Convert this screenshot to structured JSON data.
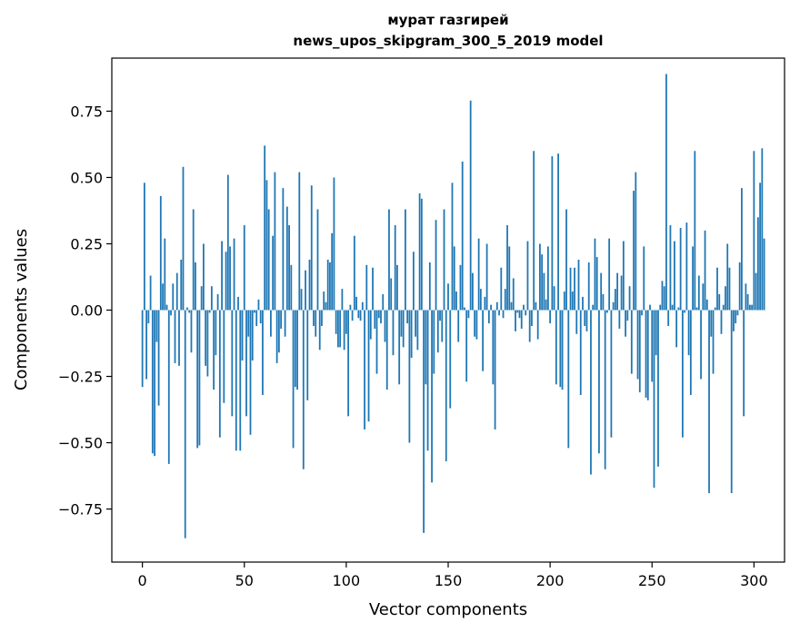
{
  "chart_data": {
    "type": "bar",
    "title": "мурат газгирей",
    "subtitle": "news_upos_skipgram_300_5_2019 model",
    "xlabel": "Vector components",
    "ylabel": "Components values",
    "xlim": [
      -15,
      315
    ],
    "ylim": [
      -0.95,
      0.95
    ],
    "x_ticks": [
      0,
      50,
      100,
      150,
      200,
      250,
      300
    ],
    "x_tick_labels": [
      "0",
      "50",
      "100",
      "150",
      "200",
      "250",
      "300"
    ],
    "y_ticks": [
      -0.75,
      -0.5,
      -0.25,
      0.0,
      0.25,
      0.5,
      0.75
    ],
    "y_tick_labels": [
      "−0.75",
      "−0.50",
      "−0.25",
      "0.00",
      "0.25",
      "0.50",
      "0.75"
    ],
    "grid": false,
    "bar_color": "#1f77b4",
    "values": [
      -0.29,
      0.48,
      -0.26,
      -0.05,
      0.13,
      -0.54,
      -0.55,
      -0.12,
      -0.36,
      0.43,
      0.1,
      0.27,
      0.02,
      -0.58,
      -0.02,
      0.1,
      -0.2,
      0.14,
      -0.21,
      0.19,
      0.54,
      -0.86,
      0.01,
      -0.01,
      -0.16,
      0.38,
      0.18,
      -0.52,
      -0.51,
      0.09,
      0.25,
      -0.21,
      -0.25,
      -0.01,
      0.09,
      -0.3,
      -0.17,
      0.06,
      -0.48,
      0.26,
      -0.35,
      0.22,
      0.51,
      0.24,
      -0.4,
      0.27,
      -0.53,
      0.05,
      -0.53,
      -0.19,
      0.32,
      -0.4,
      -0.1,
      -0.47,
      -0.19,
      -0.01,
      -0.06,
      0.04,
      -0.05,
      -0.32,
      0.62,
      0.49,
      0.38,
      -0.1,
      0.28,
      0.52,
      -0.2,
      -0.16,
      -0.07,
      0.46,
      -0.1,
      0.39,
      0.32,
      0.17,
      -0.52,
      -0.29,
      -0.3,
      0.52,
      0.08,
      -0.6,
      0.15,
      -0.34,
      0.19,
      0.47,
      -0.06,
      -0.1,
      0.38,
      -0.15,
      -0.06,
      0.07,
      0.03,
      0.19,
      0.18,
      0.29,
      0.5,
      -0.09,
      -0.14,
      -0.14,
      0.08,
      -0.15,
      -0.09,
      -0.4,
      0.02,
      -0.04,
      0.28,
      0.05,
      -0.03,
      -0.04,
      0.03,
      -0.45,
      0.17,
      -0.42,
      -0.11,
      0.16,
      -0.07,
      -0.24,
      -0.03,
      -0.05,
      0.06,
      -0.12,
      -0.3,
      0.38,
      0.12,
      -0.17,
      0.32,
      0.17,
      -0.28,
      -0.1,
      -0.14,
      0.38,
      -0.05,
      -0.5,
      -0.18,
      0.22,
      -0.1,
      -0.15,
      0.44,
      0.42,
      -0.84,
      -0.28,
      -0.53,
      0.18,
      -0.65,
      -0.24,
      0.34,
      -0.16,
      -0.04,
      -0.12,
      0.38,
      -0.57,
      0.1,
      -0.37,
      0.48,
      0.24,
      0.07,
      -0.12,
      0.17,
      0.56,
      0.01,
      -0.27,
      -0.03,
      0.79,
      0.14,
      -0.1,
      -0.11,
      0.27,
      0.08,
      -0.23,
      0.05,
      0.25,
      -0.05,
      0.02,
      -0.28,
      -0.45,
      0.03,
      -0.02,
      0.16,
      -0.03,
      0.08,
      0.32,
      0.24,
      0.03,
      0.12,
      -0.08,
      -0.01,
      -0.03,
      -0.07,
      0.02,
      -0.02,
      0.26,
      -0.12,
      -0.06,
      0.6,
      0.03,
      -0.11,
      0.25,
      0.21,
      0.14,
      0.04,
      0.24,
      -0.05,
      0.58,
      0.09,
      -0.28,
      0.59,
      -0.29,
      -0.3,
      0.07,
      0.38,
      -0.52,
      0.16,
      0.07,
      0.16,
      -0.09,
      0.19,
      -0.32,
      0.05,
      -0.06,
      -0.08,
      0.18,
      -0.62,
      0.02,
      0.27,
      0.2,
      -0.54,
      0.14,
      0.06,
      -0.6,
      -0.01,
      0.27,
      -0.48,
      0.03,
      0.08,
      0.14,
      -0.07,
      0.13,
      0.26,
      -0.1,
      -0.04,
      0.09,
      -0.24,
      0.45,
      0.52,
      -0.26,
      -0.31,
      -0.02,
      0.24,
      -0.33,
      -0.34,
      0.02,
      -0.27,
      -0.67,
      -0.17,
      -0.59,
      0.02,
      0.11,
      0.09,
      0.89,
      -0.06,
      0.32,
      0.02,
      0.26,
      -0.14,
      0.01,
      0.31,
      -0.48,
      -0.01,
      0.33,
      -0.17,
      -0.32,
      0.24,
      0.6,
      0.01,
      0.13,
      -0.26,
      0.1,
      0.3,
      0.04,
      -0.69,
      -0.1,
      -0.24,
      0.01,
      0.16,
      0.06,
      -0.09,
      0.02,
      0.09,
      0.25,
      0.16,
      -0.69,
      -0.08,
      -0.05,
      -0.02,
      0.18,
      0.46,
      -0.4,
      0.1,
      0.06,
      0.02,
      0.02,
      0.6,
      0.14,
      0.35,
      0.48,
      0.61,
      0.27
    ]
  }
}
